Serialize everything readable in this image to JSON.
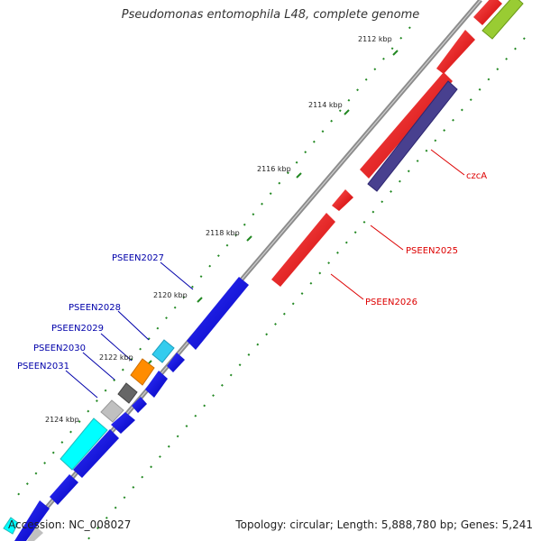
{
  "title": "Pseudomonas entomophila L48, complete genome",
  "accession": "Accession: NC_008027",
  "summary": "Topology: circular; Length: 5,888,780 bp; Genes: 5,241",
  "ticks": [
    "2112 kbp",
    "2114 kbp",
    "2116 kbp",
    "2118 kbp",
    "2120 kbp",
    "2122 kbp",
    "2124 kbp"
  ],
  "labels": {
    "czcA": "czcA",
    "pseen2025": "PSEEN2025",
    "pseen2026": "PSEEN2026",
    "pseen2027": "PSEEN2027",
    "pseen2028": "PSEEN2028",
    "pseen2029": "PSEEN2029",
    "pseen2030": "PSEEN2030",
    "pseen2031": "PSEEN2031"
  },
  "colors": {
    "backbone": "#8c8c8c",
    "reverse_gene": "#ff0000",
    "forward_gene": "#0000ee",
    "czcA_gene": "#48408f",
    "lime_gene": "#99cc33",
    "cyan_gene": "#33ccee",
    "orange_gene": "#ff8c00",
    "dark_gray_gene": "#666666",
    "light_gray_gene": "#c0c0c0",
    "aqua_gene": "#00ffff",
    "dot": "#228822",
    "red_label": "#dd0000",
    "blue_label": "#0000aa"
  }
}
